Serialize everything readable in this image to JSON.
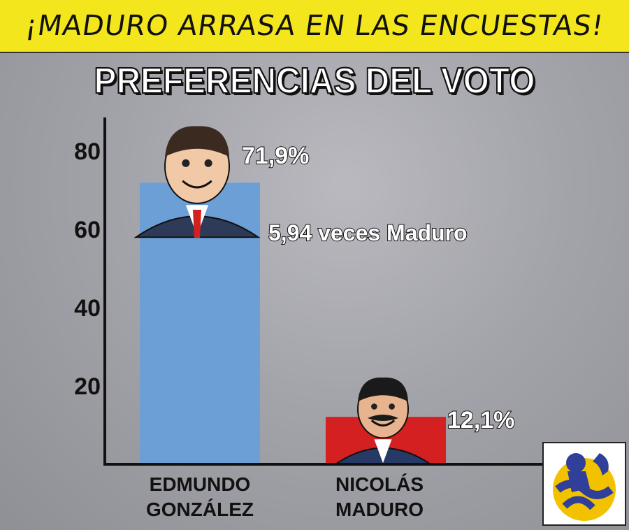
{
  "banner": {
    "text": "¡MADURO ARRASA EN LAS ENCUESTAS!"
  },
  "colors": {
    "banner_bg": "#f4e61c",
    "bar_gonzalez": "#6b9fd6",
    "bar_maduro": "#d42020",
    "logo_blue": "#2f3f9a",
    "logo_yellow": "#f2c200"
  },
  "chart_data": {
    "type": "bar",
    "title": "PREFERENCIAS DEL VOTO",
    "categories": [
      [
        "EDMUNDO",
        "GONZÁLEZ"
      ],
      [
        "NICOLÁS",
        "MADURO"
      ]
    ],
    "values": [
      71.9,
      12.1
    ],
    "value_labels": [
      "71,9%",
      "12,1%"
    ],
    "annotation": "5,94 veces Maduro",
    "yticks": [
      20,
      40,
      60,
      80
    ],
    "ylim": [
      0,
      80
    ],
    "grid": false
  },
  "icons": {
    "logo": "logo-figure-icon",
    "gonzalez_caricature": "caricature-gonzalez-icon",
    "maduro_caricature": "caricature-maduro-icon"
  }
}
